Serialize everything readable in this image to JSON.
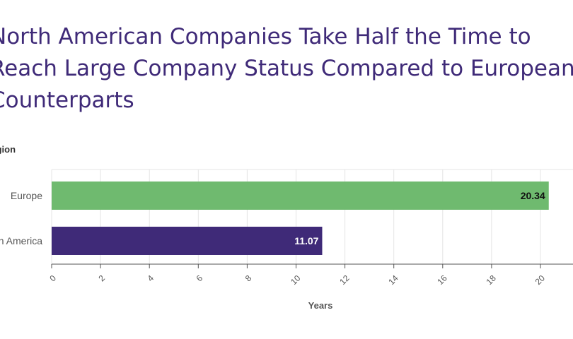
{
  "chart_data": {
    "type": "bar",
    "orientation": "horizontal",
    "title": "North American Companies Take Half the Time to Reach Large Company Status Compared to European Counterparts",
    "ylabel": "Region",
    "xlabel": "Years",
    "categories": [
      "Europe",
      "North America"
    ],
    "values": [
      20.34,
      11.07
    ],
    "value_labels": [
      "20.34",
      "11.07"
    ],
    "bar_colors": [
      "#6fba6f",
      "#3f2a78"
    ],
    "label_colors": [
      "#111111",
      "#ffffff"
    ],
    "xlim": [
      0,
      22
    ],
    "x_ticks": [
      0,
      2,
      4,
      6,
      8,
      10,
      12,
      14,
      16,
      18,
      20
    ],
    "x_tick_labels": [
      "0",
      "2",
      "4",
      "6",
      "8",
      "10",
      "12",
      "14",
      "16",
      "18",
      "20"
    ],
    "grid": true,
    "legend": "none"
  }
}
